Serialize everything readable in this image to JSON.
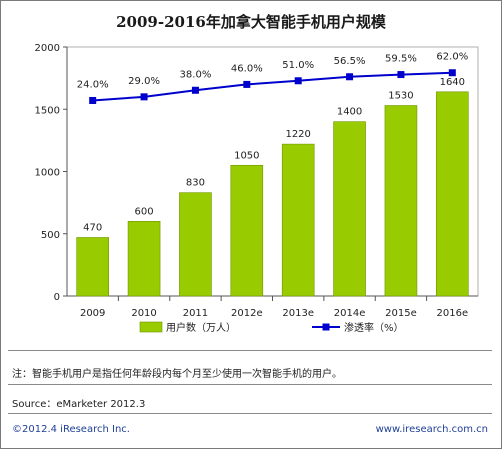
{
  "chart_data": {
    "type": "bar",
    "title": "2009-2016年加拿大智能手机用户规模",
    "categories": [
      "2009",
      "2010",
      "2011",
      "2012e",
      "2013e",
      "2014e",
      "2015e",
      "2016e"
    ],
    "series": [
      {
        "name": "用户数（万人）",
        "type": "bar",
        "axis": "left",
        "values": [
          470,
          600,
          830,
          1050,
          1220,
          1400,
          1530,
          1640
        ],
        "color": "#99cc00"
      },
      {
        "name": "渗透率（%）",
        "type": "line",
        "axis": "right",
        "values": [
          24.0,
          29.0,
          38.0,
          46.0,
          51.0,
          56.5,
          59.5,
          62.0
        ],
        "labels": [
          "24.0%",
          "29.0%",
          "38.0%",
          "46.0%",
          "51.0%",
          "56.5%",
          "59.5%",
          "62.0%"
        ],
        "color": "#0000cc"
      }
    ],
    "yticks": [
      "0",
      "500",
      "1000",
      "1500",
      "2000"
    ],
    "ylim": [
      0,
      2000
    ],
    "legend_position": "bottom"
  },
  "note": "注：智能手机用户是指任何年龄段内每个月至少使用一次智能手机的用户。",
  "source": "Source：eMarketer 2012.3",
  "footer_left": "©2012.4 iResearch Inc.",
  "footer_right": "www.iresearch.com.cn"
}
